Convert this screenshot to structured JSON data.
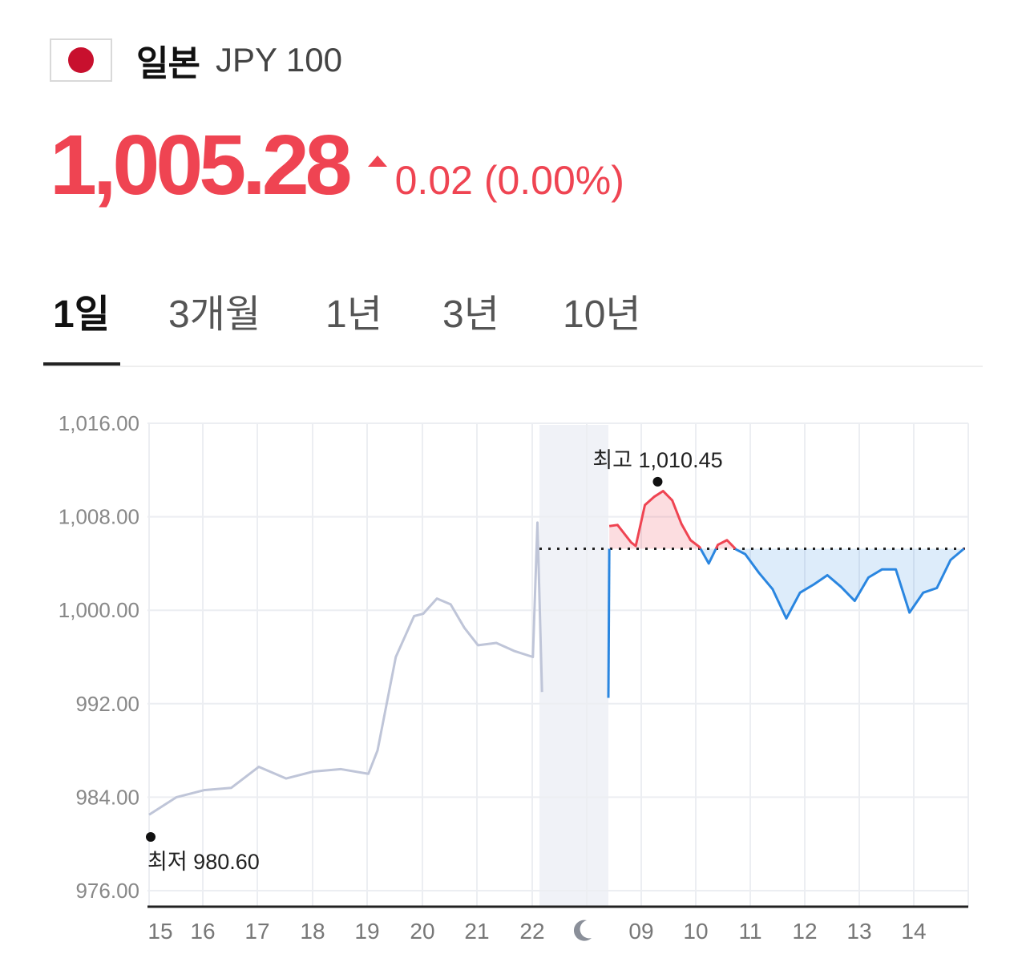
{
  "header": {
    "flag_icon": "japan-flag-icon",
    "country": "일본",
    "currency": "JPY 100"
  },
  "quote": {
    "price": "1,005.28",
    "change": "0.02 (0.00%)",
    "direction": "up",
    "up_color": "#ef4452",
    "down_color": "#2a86e0"
  },
  "tabs": [
    {
      "label": "1일",
      "active": true
    },
    {
      "label": "3개월",
      "active": false
    },
    {
      "label": "1년",
      "active": false
    },
    {
      "label": "3년",
      "active": false
    },
    {
      "label": "10년",
      "active": false
    }
  ],
  "chart_data": {
    "type": "line",
    "title": "",
    "xlabel": "",
    "ylabel": "",
    "ylim": [
      976,
      1016
    ],
    "yticks": [
      1016,
      1008,
      1000,
      992,
      984,
      976
    ],
    "ytick_labels": [
      "1,016.00",
      "1,008.00",
      "1,000.00",
      "992.00",
      "984.00",
      "976.00"
    ],
    "xtick_labels": [
      "15",
      "16",
      "17",
      "18",
      "19",
      "20",
      "21",
      "22",
      "moon-icon",
      "09",
      "10",
      "11",
      "12",
      "13",
      "14"
    ],
    "baseline": 1005.26,
    "high": {
      "label": "최고 1,010.45",
      "value": 1010.45,
      "x": "09:24"
    },
    "low": {
      "label": "최저 980.60",
      "value": 980.6,
      "x": "15:00"
    },
    "series": [
      {
        "segment": "previous-session",
        "color": "#bfc5d8",
        "x": [
          "15:00",
          "15:30",
          "16:00",
          "16:30",
          "17:00",
          "17:30",
          "18:00",
          "18:30",
          "19:00",
          "19:10",
          "19:30",
          "19:50",
          "20:00",
          "20:15",
          "20:30",
          "20:45",
          "21:00",
          "21:20",
          "21:40",
          "22:00",
          "22:05",
          "22:10"
        ],
        "y": [
          982.5,
          984.0,
          984.6,
          984.8,
          986.6,
          985.6,
          986.2,
          986.4,
          986.0,
          988.0,
          996.0,
          999.5,
          999.7,
          1001.0,
          1000.5,
          998.5,
          997.0,
          997.2,
          996.5,
          996.0,
          1007.5,
          993.0
        ]
      },
      {
        "segment": "current-session",
        "color": "#ef4452",
        "x": [
          "08:30",
          "08:31",
          "08:40",
          "08:55",
          "09:00",
          "09:10",
          "09:20",
          "09:30",
          "09:40",
          "09:50",
          "10:00",
          "10:10",
          "10:20",
          "10:30",
          "10:40",
          "10:50",
          "11:00",
          "11:15",
          "11:30",
          "11:45",
          "12:00",
          "12:15",
          "12:30",
          "12:45",
          "13:00",
          "13:15",
          "13:30",
          "13:45",
          "14:00",
          "14:15",
          "14:30",
          "14:45",
          "15:00"
        ],
        "y": [
          992.5,
          1007.2,
          1007.3,
          1005.8,
          1005.5,
          1009.0,
          1009.7,
          1010.2,
          1009.4,
          1007.4,
          1006.0,
          1005.4,
          1004.0,
          1005.6,
          1006.0,
          1005.2,
          1004.8,
          1003.2,
          1001.8,
          999.3,
          1001.5,
          1002.2,
          1003.0,
          1002.0,
          1000.8,
          1002.8,
          1003.5,
          1003.5,
          999.8,
          1001.5,
          1001.9,
          1004.3,
          1005.28
        ]
      }
    ]
  }
}
